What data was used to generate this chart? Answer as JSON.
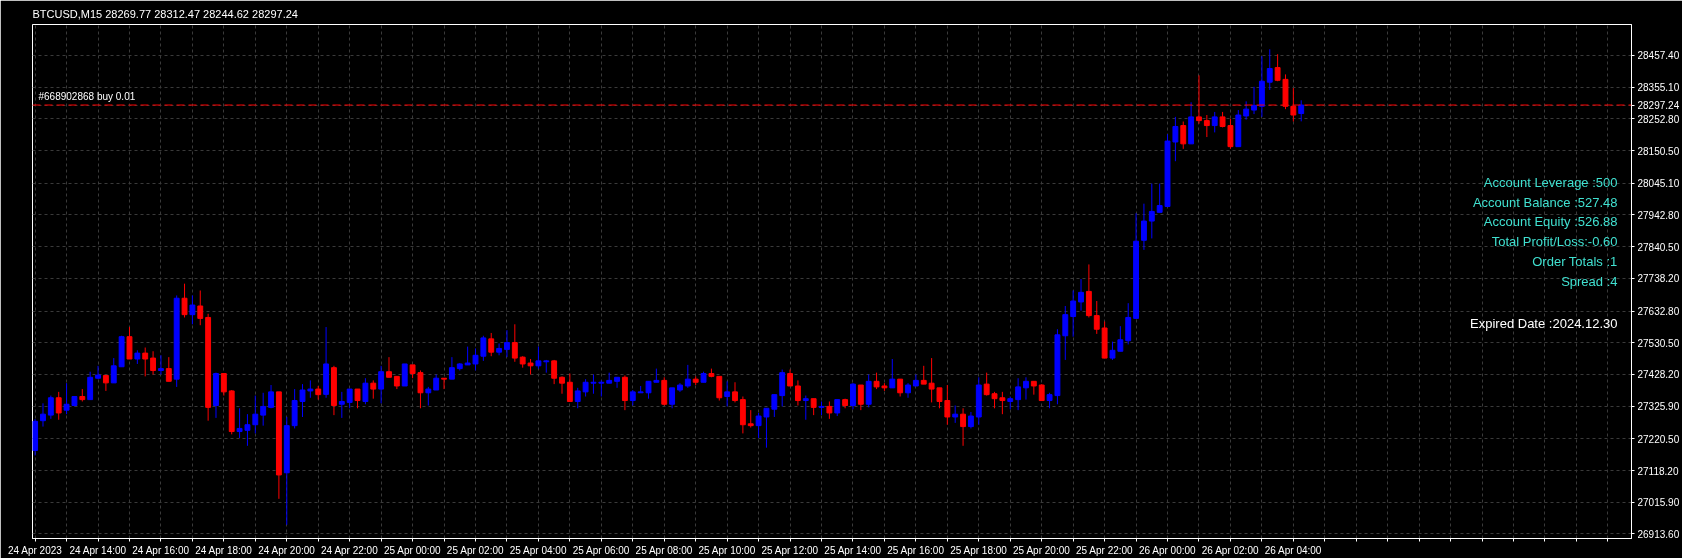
{
  "chart_data": {
    "type": "candlestick",
    "title": "BTCUSD,M15 28269.77 28312.47 28244.62 28297.24",
    "x": [
      "2023-04-24T12:00",
      "2023-04-24T12:15",
      "2023-04-24T12:30",
      "2023-04-24T12:45",
      "2023-04-24T13:00",
      "2023-04-24T13:15",
      "2023-04-24T13:30",
      "2023-04-24T13:45",
      "2023-04-24T14:00",
      "2023-04-24T14:15",
      "2023-04-24T14:30",
      "2023-04-24T14:45",
      "2023-04-24T15:00",
      "2023-04-24T15:15",
      "2023-04-24T15:30",
      "2023-04-24T15:45",
      "2023-04-24T16:00",
      "2023-04-24T16:15",
      "2023-04-24T16:30",
      "2023-04-24T16:45",
      "2023-04-24T17:00",
      "2023-04-24T17:15",
      "2023-04-24T17:30",
      "2023-04-24T17:45",
      "2023-04-24T18:00",
      "2023-04-24T18:15",
      "2023-04-24T18:30",
      "2023-04-24T18:45",
      "2023-04-24T19:00",
      "2023-04-24T19:15",
      "2023-04-24T19:30",
      "2023-04-24T19:45",
      "2023-04-24T20:00",
      "2023-04-24T20:15",
      "2023-04-24T20:30",
      "2023-04-24T20:45",
      "2023-04-24T21:00",
      "2023-04-24T21:15",
      "2023-04-24T21:30",
      "2023-04-24T21:45",
      "2023-04-24T22:00",
      "2023-04-24T22:15",
      "2023-04-24T22:30",
      "2023-04-24T22:45",
      "2023-04-24T23:00",
      "2023-04-24T23:15",
      "2023-04-24T23:30",
      "2023-04-24T23:45",
      "2023-04-25T00:00",
      "2023-04-25T00:15",
      "2023-04-25T00:30",
      "2023-04-25T00:45",
      "2023-04-25T01:00",
      "2023-04-25T01:15",
      "2023-04-25T01:30",
      "2023-04-25T01:45",
      "2023-04-25T02:00",
      "2023-04-25T02:15",
      "2023-04-25T02:30",
      "2023-04-25T02:45",
      "2023-04-25T03:00",
      "2023-04-25T03:15",
      "2023-04-25T03:30",
      "2023-04-25T03:45",
      "2023-04-25T04:00",
      "2023-04-25T04:15",
      "2023-04-25T04:30",
      "2023-04-25T04:45",
      "2023-04-25T05:00",
      "2023-04-25T05:15",
      "2023-04-25T05:30",
      "2023-04-25T05:45",
      "2023-04-25T06:00",
      "2023-04-25T06:15",
      "2023-04-25T06:30",
      "2023-04-25T06:45",
      "2023-04-25T07:00",
      "2023-04-25T07:15",
      "2023-04-25T07:30",
      "2023-04-25T07:45",
      "2023-04-25T08:00",
      "2023-04-25T08:15",
      "2023-04-25T08:30",
      "2023-04-25T08:45",
      "2023-04-25T09:00",
      "2023-04-25T09:15",
      "2023-04-25T09:30",
      "2023-04-25T09:45",
      "2023-04-25T10:00",
      "2023-04-25T10:15",
      "2023-04-25T10:30",
      "2023-04-25T10:45",
      "2023-04-25T11:00",
      "2023-04-25T11:15",
      "2023-04-25T11:30",
      "2023-04-25T11:45",
      "2023-04-25T12:00",
      "2023-04-25T12:15",
      "2023-04-25T12:30",
      "2023-04-25T12:45",
      "2023-04-25T13:00",
      "2023-04-25T13:15",
      "2023-04-25T13:30",
      "2023-04-25T13:45",
      "2023-04-25T14:00",
      "2023-04-25T14:15",
      "2023-04-25T14:30",
      "2023-04-25T14:45",
      "2023-04-25T15:00",
      "2023-04-25T15:15",
      "2023-04-25T15:30",
      "2023-04-25T15:45",
      "2023-04-25T16:00",
      "2023-04-25T16:15",
      "2023-04-25T16:30",
      "2023-04-25T16:45",
      "2023-04-25T17:00",
      "2023-04-25T17:15",
      "2023-04-25T17:30",
      "2023-04-25T17:45",
      "2023-04-25T18:00",
      "2023-04-25T18:15",
      "2023-04-25T18:30",
      "2023-04-25T18:45",
      "2023-04-25T19:00",
      "2023-04-25T19:15",
      "2023-04-25T19:30",
      "2023-04-25T19:45",
      "2023-04-25T20:00",
      "2023-04-25T20:15",
      "2023-04-25T20:30",
      "2023-04-25T20:45",
      "2023-04-25T21:00",
      "2023-04-25T21:15",
      "2023-04-25T21:30",
      "2023-04-25T21:45",
      "2023-04-25T22:00",
      "2023-04-25T22:15",
      "2023-04-25T22:30",
      "2023-04-25T22:45",
      "2023-04-25T23:00",
      "2023-04-25T23:15",
      "2023-04-25T23:30",
      "2023-04-25T23:45",
      "2023-04-26T00:00",
      "2023-04-26T00:15",
      "2023-04-26T00:30",
      "2023-04-26T00:45",
      "2023-04-26T01:00",
      "2023-04-26T01:15",
      "2023-04-26T01:30",
      "2023-04-26T01:45",
      "2023-04-26T02:00",
      "2023-04-26T02:15",
      "2023-04-26T02:30",
      "2023-04-26T02:45",
      "2023-04-26T03:00",
      "2023-04-26T03:15",
      "2023-04-26T03:30",
      "2023-04-26T03:45",
      "2023-04-26T04:00",
      "2023-04-26T04:15"
    ],
    "ohlc": [
      [
        27183,
        27284,
        27167,
        27277
      ],
      [
        27279,
        27335,
        27260,
        27300
      ],
      [
        27297,
        27360,
        27285,
        27353
      ],
      [
        27353,
        27372,
        27282,
        27304
      ],
      [
        27313,
        27400,
        27300,
        27332
      ],
      [
        27328,
        27357,
        27325,
        27357
      ],
      [
        27357,
        27381,
        27341,
        27347
      ],
      [
        27347,
        27437,
        27347,
        27419
      ],
      [
        27416,
        27456,
        27413,
        27426
      ],
      [
        27425,
        27425,
        27375,
        27401
      ],
      [
        27401,
        27481,
        27401,
        27456
      ],
      [
        27453,
        27553,
        27453,
        27550
      ],
      [
        27550,
        27581,
        27478,
        27478
      ],
      [
        27478,
        27506,
        27462,
        27497
      ],
      [
        27497,
        27515,
        27422,
        27478
      ],
      [
        27481,
        27503,
        27428,
        27441
      ],
      [
        27441,
        27490,
        27428,
        27447
      ],
      [
        27447,
        27484,
        27406,
        27406
      ],
      [
        27413,
        27683,
        27388,
        27674
      ],
      [
        27674,
        27721,
        27612,
        27621
      ],
      [
        27621,
        27683,
        27590,
        27652
      ],
      [
        27649,
        27699,
        27587,
        27609
      ],
      [
        27612,
        27624,
        27279,
        27322
      ],
      [
        27328,
        27434,
        27288,
        27431
      ],
      [
        27431,
        27431,
        27360,
        27372
      ],
      [
        27375,
        27378,
        27235,
        27244
      ],
      [
        27244,
        27319,
        27223,
        27254
      ],
      [
        27248,
        27300,
        27198,
        27266
      ],
      [
        27266,
        27360,
        27238,
        27300
      ],
      [
        27297,
        27369,
        27263,
        27325
      ],
      [
        27322,
        27394,
        27319,
        27372
      ],
      [
        27372,
        27372,
        27027,
        27104
      ],
      [
        27111,
        27291,
        26943,
        27263
      ],
      [
        27263,
        27381,
        27254,
        27344
      ],
      [
        27341,
        27397,
        27291,
        27378
      ],
      [
        27375,
        27409,
        27353,
        27381
      ],
      [
        27381,
        27391,
        27347,
        27363
      ],
      [
        27364,
        27581,
        27353,
        27462
      ],
      [
        27450,
        27456,
        27297,
        27328
      ],
      [
        27332,
        27372,
        27288,
        27341
      ],
      [
        27338,
        27381,
        27319,
        27381
      ],
      [
        27381,
        27381,
        27319,
        27344
      ],
      [
        27341,
        27416,
        27332,
        27400
      ],
      [
        27400,
        27409,
        27350,
        27381
      ],
      [
        27381,
        27456,
        27335,
        27437
      ],
      [
        27437,
        27484,
        27419,
        27419
      ],
      [
        27422,
        27422,
        27381,
        27391
      ],
      [
        27391,
        27462,
        27391,
        27462
      ],
      [
        27459,
        27459,
        27416,
        27431
      ],
      [
        27434,
        27441,
        27319,
        27369
      ],
      [
        27369,
        27388,
        27328,
        27381
      ],
      [
        27378,
        27428,
        27378,
        27416
      ],
      [
        27416,
        27416,
        27381,
        27413
      ],
      [
        27413,
        27484,
        27413,
        27450
      ],
      [
        27447,
        27465,
        27441,
        27462
      ],
      [
        27459,
        27518,
        27459,
        27465
      ],
      [
        27462,
        27512,
        27441,
        27490
      ],
      [
        27487,
        27553,
        27472,
        27546
      ],
      [
        27543,
        27562,
        27487,
        27500
      ],
      [
        27500,
        27528,
        27490,
        27512
      ],
      [
        27509,
        27571,
        27484,
        27531
      ],
      [
        27531,
        27590,
        27469,
        27481
      ],
      [
        27484,
        27487,
        27450,
        27462
      ],
      [
        27465,
        27478,
        27428,
        27456
      ],
      [
        27456,
        27518,
        27447,
        27472
      ],
      [
        27469,
        27475,
        27434,
        27472
      ],
      [
        27472,
        27475,
        27397,
        27416
      ],
      [
        27419,
        27422,
        27366,
        27400
      ],
      [
        27403,
        27431,
        27341,
        27341
      ],
      [
        27341,
        27385,
        27319,
        27375
      ],
      [
        27372,
        27413,
        27357,
        27403
      ],
      [
        27400,
        27428,
        27366,
        27403
      ],
      [
        27400,
        27409,
        27357,
        27403
      ],
      [
        27400,
        27434,
        27400,
        27409
      ],
      [
        27406,
        27419,
        27385,
        27419
      ],
      [
        27419,
        27425,
        27313,
        27344
      ],
      [
        27344,
        27378,
        27328,
        27372
      ],
      [
        27369,
        27391,
        27369,
        27372
      ],
      [
        27369,
        27406,
        27350,
        27406
      ],
      [
        27403,
        27447,
        27403,
        27409
      ],
      [
        27409,
        27419,
        27328,
        27332
      ],
      [
        27332,
        27385,
        27319,
        27385
      ],
      [
        27378,
        27400,
        27372,
        27394
      ],
      [
        27391,
        27459,
        27385,
        27413
      ],
      [
        27413,
        27422,
        27394,
        27403
      ],
      [
        27403,
        27437,
        27403,
        27431
      ],
      [
        27431,
        27447,
        27419,
        27422
      ],
      [
        27422,
        27422,
        27344,
        27353
      ],
      [
        27357,
        27406,
        27325,
        27372
      ],
      [
        27372,
        27403,
        27338,
        27344
      ],
      [
        27347,
        27357,
        27238,
        27266
      ],
      [
        27269,
        27313,
        27257,
        27263
      ],
      [
        27263,
        27304,
        27223,
        27294
      ],
      [
        27291,
        27319,
        27192,
        27319
      ],
      [
        27316,
        27363,
        27291,
        27363
      ],
      [
        27360,
        27444,
        27325,
        27434
      ],
      [
        27431,
        27444,
        27391,
        27391
      ],
      [
        27391,
        27409,
        27328,
        27344
      ],
      [
        27344,
        27360,
        27282,
        27350
      ],
      [
        27350,
        27350,
        27297,
        27322
      ],
      [
        27322,
        27341,
        27297,
        27325
      ],
      [
        27325,
        27341,
        27285,
        27304
      ],
      [
        27304,
        27347,
        27294,
        27347
      ],
      [
        27347,
        27350,
        27319,
        27328
      ],
      [
        27328,
        27400,
        27316,
        27397
      ],
      [
        27394,
        27394,
        27313,
        27332
      ],
      [
        27332,
        27428,
        27322,
        27406
      ],
      [
        27406,
        27434,
        27381,
        27388
      ],
      [
        27391,
        27400,
        27375,
        27385
      ],
      [
        27385,
        27478,
        27385,
        27413
      ],
      [
        27413,
        27413,
        27357,
        27369
      ],
      [
        27369,
        27400,
        27353,
        27394
      ],
      [
        27391,
        27428,
        27391,
        27409
      ],
      [
        27409,
        27456,
        27397,
        27397
      ],
      [
        27400,
        27481,
        27338,
        27381
      ],
      [
        27385,
        27385,
        27319,
        27341
      ],
      [
        27344,
        27394,
        27266,
        27291
      ],
      [
        27291,
        27328,
        27272,
        27300
      ],
      [
        27300,
        27319,
        27198,
        27260
      ],
      [
        27260,
        27307,
        27254,
        27294
      ],
      [
        27291,
        27419,
        27266,
        27394
      ],
      [
        27397,
        27434,
        27360,
        27363
      ],
      [
        27366,
        27372,
        27319,
        27350
      ],
      [
        27353,
        27372,
        27300,
        27344
      ],
      [
        27341,
        27357,
        27316,
        27350
      ],
      [
        27347,
        27416,
        27313,
        27388
      ],
      [
        27385,
        27419,
        27347,
        27406
      ],
      [
        27406,
        27406,
        27363,
        27391
      ],
      [
        27394,
        27397,
        27344,
        27344
      ],
      [
        27344,
        27369,
        27319,
        27363
      ],
      [
        27360,
        27574,
        27332,
        27556
      ],
      [
        27553,
        27649,
        27475,
        27621
      ],
      [
        27615,
        27699,
        27550,
        27665
      ],
      [
        27662,
        27736,
        27634,
        27693
      ],
      [
        27696,
        27783,
        27612,
        27618
      ],
      [
        27618,
        27665,
        27559,
        27574
      ],
      [
        27578,
        27599,
        27481,
        27481
      ],
      [
        27481,
        27534,
        27475,
        27506
      ],
      [
        27503,
        27584,
        27503,
        27540
      ],
      [
        27537,
        27658,
        27525,
        27612
      ],
      [
        27609,
        27948,
        27609,
        27858
      ],
      [
        27861,
        27979,
        27830,
        27923
      ],
      [
        27923,
        28044,
        27867,
        27954
      ],
      [
        27951,
        28044,
        27951,
        27973
      ],
      [
        27970,
        28203,
        27970,
        28181
      ],
      [
        28178,
        28259,
        28116,
        28228
      ],
      [
        28231,
        28244,
        28156,
        28172
      ],
      [
        28172,
        28306,
        28172,
        28259
      ],
      [
        28259,
        28393,
        28237,
        28247
      ],
      [
        28247,
        28265,
        28194,
        28231
      ],
      [
        28231,
        28275,
        28209,
        28259
      ],
      [
        28259,
        28275,
        28225,
        28228
      ],
      [
        28231,
        28253,
        28156,
        28163
      ],
      [
        28163,
        28281,
        28163,
        28265
      ],
      [
        28262,
        28309,
        28250,
        28284
      ],
      [
        28281,
        28356,
        28268,
        28296
      ],
      [
        28293,
        28455,
        28259,
        28374
      ],
      [
        28371,
        28477,
        28346,
        28415
      ],
      [
        28418,
        28461,
        28374,
        28377
      ],
      [
        28380,
        28396,
        28284,
        28293
      ],
      [
        28293,
        28352,
        28244,
        28265
      ],
      [
        28269.77,
        28312.47,
        28244.62,
        28297.24
      ]
    ],
    "colors": [
      "#0000ff",
      "#0000ff",
      "#0000ff",
      "#ff0000",
      "#0000ff",
      "#0000ff",
      "#ff0000",
      "#0000ff",
      "#0000ff",
      "#ff0000",
      "#0000ff",
      "#0000ff",
      "#ff0000",
      "#0000ff",
      "#ff0000",
      "#ff0000",
      "#0000ff",
      "#ff0000",
      "#0000ff",
      "#ff0000",
      "#0000ff",
      "#ff0000",
      "#ff0000",
      "#0000ff",
      "#ff0000",
      "#ff0000",
      "#0000ff",
      "#0000ff",
      "#0000ff",
      "#0000ff",
      "#0000ff",
      "#ff0000",
      "#0000ff",
      "#0000ff",
      "#0000ff",
      "#0000ff",
      "#ff0000",
      "#0000ff",
      "#ff0000",
      "#0000ff",
      "#0000ff",
      "#ff0000",
      "#0000ff",
      "#ff0000",
      "#0000ff",
      "#ff0000",
      "#ff0000",
      "#0000ff",
      "#ff0000",
      "#ff0000",
      "#0000ff",
      "#0000ff",
      "#ff0000",
      "#0000ff",
      "#0000ff",
      "#0000ff",
      "#0000ff",
      "#0000ff",
      "#ff0000",
      "#0000ff",
      "#0000ff",
      "#ff0000",
      "#ff0000",
      "#ff0000",
      "#0000ff",
      "#0000ff",
      "#ff0000",
      "#ff0000",
      "#ff0000",
      "#0000ff",
      "#0000ff",
      "#0000ff",
      "#0000ff",
      "#0000ff",
      "#0000ff",
      "#ff0000",
      "#0000ff",
      "#0000ff",
      "#0000ff",
      "#0000ff",
      "#ff0000",
      "#0000ff",
      "#0000ff",
      "#0000ff",
      "#ff0000",
      "#0000ff",
      "#ff0000",
      "#ff0000",
      "#0000ff",
      "#ff0000",
      "#ff0000",
      "#ff0000",
      "#0000ff",
      "#0000ff",
      "#0000ff",
      "#0000ff",
      "#ff0000",
      "#ff0000",
      "#0000ff",
      "#ff0000",
      "#0000ff",
      "#ff0000",
      "#0000ff",
      "#ff0000",
      "#0000ff",
      "#ff0000",
      "#0000ff",
      "#ff0000",
      "#ff0000",
      "#0000ff",
      "#ff0000",
      "#0000ff",
      "#0000ff",
      "#ff0000",
      "#ff0000",
      "#ff0000",
      "#ff0000",
      "#0000ff",
      "#ff0000",
      "#0000ff",
      "#0000ff",
      "#ff0000",
      "#ff0000",
      "#ff0000",
      "#0000ff",
      "#0000ff",
      "#0000ff",
      "#ff0000",
      "#ff0000",
      "#0000ff",
      "#0000ff",
      "#0000ff",
      "#0000ff",
      "#0000ff",
      "#ff0000",
      "#ff0000",
      "#ff0000",
      "#0000ff",
      "#0000ff",
      "#0000ff",
      "#0000ff",
      "#0000ff",
      "#0000ff",
      "#0000ff",
      "#0000ff",
      "#0000ff",
      "#ff0000",
      "#0000ff",
      "#ff0000",
      "#ff0000",
      "#0000ff",
      "#ff0000",
      "#ff0000",
      "#0000ff",
      "#0000ff",
      "#0000ff",
      "#0000ff",
      "#0000ff",
      "#ff0000",
      "#ff0000",
      "#ff0000",
      "#0000ff"
    ],
    "xlim": [
      "2023-04-24T11:55",
      "2023-04-26T14:45"
    ],
    "ylim": [
      26899,
      28557
    ],
    "xticks": [
      {
        "value": "2023-04-24T12:00",
        "label": "24 Apr 2023"
      },
      {
        "value": "2023-04-24T13:00",
        "label": null
      },
      {
        "value": "2023-04-24T14:00",
        "label": "24 Apr 14:00"
      },
      {
        "value": "2023-04-24T15:00",
        "label": null
      },
      {
        "value": "2023-04-24T16:00",
        "label": "24 Apr 16:00"
      },
      {
        "value": "2023-04-24T17:00",
        "label": null
      },
      {
        "value": "2023-04-24T18:00",
        "label": "24 Apr 18:00"
      },
      {
        "value": "2023-04-24T19:00",
        "label": null
      },
      {
        "value": "2023-04-24T20:00",
        "label": "24 Apr 20:00"
      },
      {
        "value": "2023-04-24T21:00",
        "label": null
      },
      {
        "value": "2023-04-24T22:00",
        "label": "24 Apr 22:00"
      },
      {
        "value": "2023-04-24T23:00",
        "label": null
      },
      {
        "value": "2023-04-25T00:00",
        "label": "25 Apr 00:00"
      },
      {
        "value": "2023-04-25T01:00",
        "label": null
      },
      {
        "value": "2023-04-25T02:00",
        "label": "25 Apr 02:00"
      },
      {
        "value": "2023-04-25T03:00",
        "label": null
      },
      {
        "value": "2023-04-25T04:00",
        "label": "25 Apr 04:00"
      },
      {
        "value": "2023-04-25T05:00",
        "label": null
      },
      {
        "value": "2023-04-25T06:00",
        "label": "25 Apr 06:00"
      },
      {
        "value": "2023-04-25T07:00",
        "label": null
      },
      {
        "value": "2023-04-25T08:00",
        "label": "25 Apr 08:00"
      },
      {
        "value": "2023-04-25T09:00",
        "label": null
      },
      {
        "value": "2023-04-25T10:00",
        "label": "25 Apr 10:00"
      },
      {
        "value": "2023-04-25T11:00",
        "label": null
      },
      {
        "value": "2023-04-25T12:00",
        "label": "25 Apr 12:00"
      },
      {
        "value": "2023-04-25T13:00",
        "label": null
      },
      {
        "value": "2023-04-25T14:00",
        "label": "25 Apr 14:00"
      },
      {
        "value": "2023-04-25T15:00",
        "label": null
      },
      {
        "value": "2023-04-25T16:00",
        "label": "25 Apr 16:00"
      },
      {
        "value": "2023-04-25T17:00",
        "label": null
      },
      {
        "value": "2023-04-25T18:00",
        "label": "25 Apr 18:00"
      },
      {
        "value": "2023-04-25T19:00",
        "label": null
      },
      {
        "value": "2023-04-25T20:00",
        "label": "25 Apr 20:00"
      },
      {
        "value": "2023-04-25T21:00",
        "label": null
      },
      {
        "value": "2023-04-25T22:00",
        "label": "25 Apr 22:00"
      },
      {
        "value": "2023-04-25T23:00",
        "label": null
      },
      {
        "value": "2023-04-26T00:00",
        "label": "26 Apr 00:00"
      },
      {
        "value": "2023-04-26T01:00",
        "label": null
      },
      {
        "value": "2023-04-26T02:00",
        "label": "26 Apr 02:00"
      },
      {
        "value": "2023-04-26T03:00",
        "label": null
      },
      {
        "value": "2023-04-26T04:00",
        "label": "26 Apr 04:00"
      },
      {
        "value": "2023-04-26T05:00",
        "label": null
      },
      {
        "value": "2023-04-26T06:00",
        "label": null
      },
      {
        "value": "2023-04-26T07:00",
        "label": null
      },
      {
        "value": "2023-04-26T08:00",
        "label": null
      },
      {
        "value": "2023-04-26T09:00",
        "label": null
      },
      {
        "value": "2023-04-26T10:00",
        "label": null
      },
      {
        "value": "2023-04-26T11:00",
        "label": null
      },
      {
        "value": "2023-04-26T12:00",
        "label": null
      },
      {
        "value": "2023-04-26T13:00",
        "label": null
      },
      {
        "value": "2023-04-26T14:00",
        "label": null
      }
    ],
    "yticks": [
      {
        "value": 26913.6,
        "label": "26913.60"
      },
      {
        "value": 27015.9,
        "label": "27015.90"
      },
      {
        "value": 27118.2,
        "label": "27118.20"
      },
      {
        "value": 27220.5,
        "label": "27220.50"
      },
      {
        "value": 27325.9,
        "label": "27325.90"
      },
      {
        "value": 27428.2,
        "label": "27428.20"
      },
      {
        "value": 27530.5,
        "label": "27530.50"
      },
      {
        "value": 27632.8,
        "label": "27632.80"
      },
      {
        "value": 27738.2,
        "label": "27738.20"
      },
      {
        "value": 27840.5,
        "label": "27840.50"
      },
      {
        "value": 27942.8,
        "label": "27942.80"
      },
      {
        "value": 28045.1,
        "label": "28045.10"
      },
      {
        "value": 28150.5,
        "label": "28150.50"
      },
      {
        "value": 28252.8,
        "label": "28252.80"
      },
      {
        "value": 28297.24,
        "label": "28297.24"
      },
      {
        "value": 28355.1,
        "label": "28355.10"
      },
      {
        "value": 28457.4,
        "label": "28457.40"
      }
    ],
    "grid": true,
    "ref_lines": [
      {
        "axis": "y",
        "value": 28297.24,
        "label": "#668902868 buy 0.01",
        "color": "#ff0000",
        "line_style": "dashed"
      }
    ],
    "annotations": [
      "Account Leverage :500",
      "Account Balance :527.48",
      "Account Equity :526.88",
      "Total Profit/Loss:-0.60",
      "Order Totals :1",
      "Spread :4",
      "Expired Date :2024.12.30"
    ]
  }
}
